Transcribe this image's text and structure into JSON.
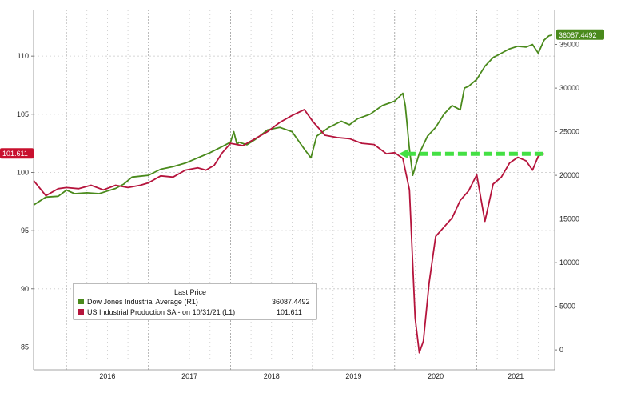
{
  "chart_data": {
    "type": "line",
    "x_axis": {
      "year_labels": [
        "2016",
        "2017",
        "2018",
        "2019",
        "2020",
        "2021"
      ],
      "range": [
        2015.6,
        2021.95
      ]
    },
    "left_axis": {
      "ticks": [
        "85",
        "90",
        "95",
        "100",
        "105",
        "110"
      ],
      "range": [
        84,
        114
      ]
    },
    "right_axis": {
      "ticks": [
        "0",
        "5000",
        "10000",
        "15000",
        "20000",
        "25000",
        "30000",
        "35000"
      ],
      "range": [
        -1000,
        39000
      ]
    },
    "grid": true,
    "legend": {
      "title": "Last Price",
      "placement": "bottom-left",
      "items": [
        {
          "label": "Dow Jones Industrial Average (R1)",
          "value": "36087.4492",
          "color": "#4a8a1c"
        },
        {
          "label": "US Industrial Production SA - on 10/31/21 (L1)",
          "value": "101.611",
          "color": "#b5143c"
        }
      ]
    },
    "last_value_tags": {
      "right": "36087.4492",
      "left": "101.611"
    },
    "series": [
      {
        "name": "Dow Jones Industrial Average (R1)",
        "axis": "right",
        "color": "#4a8a1c",
        "x": [
          2015.6,
          2015.75,
          2015.9,
          2016.0,
          2016.1,
          2016.25,
          2016.4,
          2016.5,
          2016.6,
          2016.7,
          2016.8,
          2016.9,
          2017.0,
          2017.15,
          2017.3,
          2017.45,
          2017.6,
          2017.75,
          2017.9,
          2018.0,
          2018.04,
          2018.08,
          2018.1,
          2018.2,
          2018.3,
          2018.45,
          2018.6,
          2018.75,
          2018.9,
          2018.98,
          2019.05,
          2019.2,
          2019.35,
          2019.45,
          2019.55,
          2019.7,
          2019.85,
          2020.0,
          2020.1,
          2020.13,
          2020.18,
          2020.22,
          2020.3,
          2020.4,
          2020.5,
          2020.6,
          2020.7,
          2020.8,
          2020.85,
          2020.9,
          2021.0,
          2021.1,
          2021.2,
          2021.3,
          2021.4,
          2021.5,
          2021.6,
          2021.68,
          2021.75,
          2021.82,
          2021.88,
          2021.92
        ],
        "y": [
          16600,
          17500,
          17600,
          18300,
          17900,
          18000,
          17900,
          18200,
          18500,
          19000,
          19800,
          19900,
          20000,
          20700,
          21000,
          21400,
          22000,
          22600,
          23300,
          23800,
          25000,
          23500,
          23800,
          23500,
          24100,
          25200,
          25500,
          25000,
          23000,
          22000,
          24500,
          25500,
          26200,
          25800,
          26500,
          27000,
          28000,
          28500,
          29400,
          28000,
          23000,
          20000,
          22500,
          24500,
          25500,
          27000,
          28000,
          27500,
          30000,
          30200,
          31000,
          32500,
          33500,
          34000,
          34500,
          34800,
          34700,
          35000,
          34000,
          35500,
          36000,
          36087
        ]
      },
      {
        "name": "US Industrial Production SA - on 10/31/21 (L1)",
        "axis": "left",
        "color": "#b5143c",
        "x": [
          2015.6,
          2015.75,
          2015.9,
          2016.0,
          2016.15,
          2016.3,
          2016.45,
          2016.6,
          2016.75,
          2016.9,
          2017.0,
          2017.15,
          2017.3,
          2017.45,
          2017.6,
          2017.7,
          2017.8,
          2017.9,
          2018.0,
          2018.15,
          2018.3,
          2018.45,
          2018.6,
          2018.75,
          2018.9,
          2019.0,
          2019.15,
          2019.3,
          2019.45,
          2019.6,
          2019.75,
          2019.9,
          2020.0,
          2020.1,
          2020.18,
          2020.25,
          2020.3,
          2020.35,
          2020.42,
          2020.5,
          2020.6,
          2020.7,
          2020.8,
          2020.9,
          2021.0,
          2021.1,
          2021.2,
          2021.3,
          2021.4,
          2021.5,
          2021.6,
          2021.68,
          2021.75,
          2021.82
        ],
        "y": [
          99.3,
          98.0,
          98.6,
          98.7,
          98.6,
          98.9,
          98.5,
          98.9,
          98.7,
          98.9,
          99.1,
          99.7,
          99.6,
          100.2,
          100.4,
          100.2,
          100.6,
          101.7,
          102.5,
          102.3,
          102.9,
          103.5,
          104.3,
          104.9,
          105.4,
          104.4,
          103.2,
          103.0,
          102.9,
          102.5,
          102.4,
          101.6,
          101.7,
          101.2,
          98.5,
          87.5,
          84.5,
          85.5,
          90.5,
          94.5,
          95.3,
          96.1,
          97.6,
          98.4,
          99.8,
          95.8,
          99.0,
          99.6,
          100.8,
          101.3,
          101.0,
          100.2,
          101.4,
          101.6
        ]
      }
    ]
  }
}
